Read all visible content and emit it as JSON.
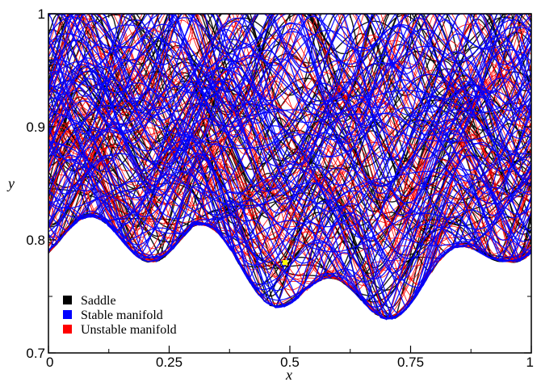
{
  "chart_data": {
    "type": "scatter",
    "title": "",
    "xlabel": "x",
    "ylabel": "y",
    "xlim": [
      0,
      1
    ],
    "ylim": [
      0.7,
      1
    ],
    "x_ticks": [
      {
        "value": 0,
        "label": "0"
      },
      {
        "value": 0.25,
        "label": "0.25"
      },
      {
        "value": 0.5,
        "label": "0.5"
      },
      {
        "value": 0.75,
        "label": "0.75"
      },
      {
        "value": 1,
        "label": "1"
      }
    ],
    "y_ticks": [
      {
        "value": 0.7,
        "label": "0.7"
      },
      {
        "value": 0.8,
        "label": "0.8"
      },
      {
        "value": 0.9,
        "label": "0.9"
      },
      {
        "value": 1,
        "label": "1"
      }
    ],
    "grid": false,
    "legend_position": "bottom-left",
    "series": [
      {
        "name": "Saddle",
        "color": "#000000"
      },
      {
        "name": "Stable manifold",
        "color": "#0000ff"
      },
      {
        "name": "Unstable manifold",
        "color": "#ff0000"
      }
    ],
    "marker": {
      "x": 0.49,
      "y": 0.78,
      "color": "#ffff00"
    }
  }
}
